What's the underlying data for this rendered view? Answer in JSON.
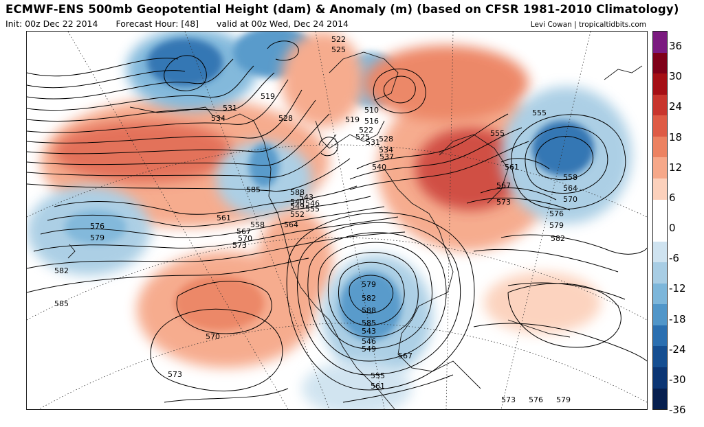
{
  "header": {
    "title": "ECMWF-ENS 500mb Geopotential Height (dam) & Anomaly (m) (based on CFSR 1981-2010 Climatology)",
    "init": "Init: 00z Dec 22 2014",
    "forecast_hour": "Forecast Hour: [48]",
    "valid": "valid at 00z Wed, Dec 24 2014",
    "credit": "Levi Cowan | tropicaltidbits.com"
  },
  "colorbar": {
    "colors": [
      "#7b1a80",
      "#7f0018",
      "#a50f15",
      "#c8352d",
      "#de5b45",
      "#ec8261",
      "#f6a889",
      "#fcd1bc",
      "#ffffff",
      "#ffffff",
      "#cfe3f0",
      "#a8cde4",
      "#7db6da",
      "#5196c9",
      "#2b6fb0",
      "#154e91",
      "#0b3574",
      "#061f4f"
    ],
    "labels": [
      "36",
      "30",
      "24",
      "18",
      "12",
      "6",
      "0",
      "-6",
      "-12",
      "-18",
      "-24",
      "-30",
      "-36"
    ]
  },
  "map": {
    "contour_labels": [
      "522",
      "525",
      "519",
      "531",
      "534",
      "528",
      "510",
      "516",
      "519",
      "522",
      "525",
      "531",
      "528",
      "534",
      "537",
      "540",
      "555",
      "555",
      "561",
      "558",
      "564",
      "567",
      "570",
      "573",
      "576",
      "579",
      "582",
      "585",
      "588",
      "540",
      "543",
      "546",
      "549",
      "552",
      "555",
      "561",
      "564",
      "558",
      "567",
      "570",
      "573",
      "576",
      "579",
      "582",
      "585",
      "570",
      "573",
      "579",
      "582",
      "588",
      "585",
      "543",
      "546",
      "549",
      "555",
      "561",
      "567",
      "573",
      "576",
      "579"
    ]
  }
}
